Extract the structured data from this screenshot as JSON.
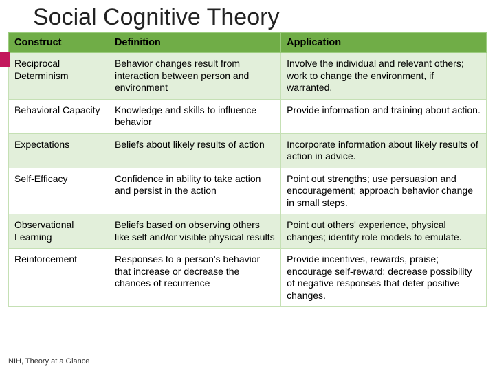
{
  "title": "Social Cognitive Theory",
  "footer": "NIH, Theory at a Glance",
  "accent_color": "#c2185b",
  "table": {
    "type": "table",
    "header_bg": "#70ad47",
    "row_odd_bg": "#e2efda",
    "row_even_bg": "#ffffff",
    "border_color": "#c5e0b4",
    "columns": [
      "Construct",
      "Definition",
      "Application"
    ],
    "col_widths": [
      "21%",
      "36%",
      "43%"
    ],
    "rows": [
      {
        "construct": "Reciprocal Determinism",
        "definition": "Behavior changes result from interaction between person and environment",
        "application": "Involve the individual and relevant others; work to change the environment, if warranted."
      },
      {
        "construct": "Behavioral Capacity",
        "definition": "Knowledge and skills to influence behavior",
        "application": "Provide information and training about action."
      },
      {
        "construct": "Expectations",
        "definition": "Beliefs about likely results of action",
        "application": "Incorporate information about likely results of action in advice."
      },
      {
        "construct": "Self-Efficacy",
        "definition": "Confidence in ability to take action and persist in the action",
        "application": "Point out strengths; use persuasion and encouragement; approach behavior change in small steps."
      },
      {
        "construct": "Observational Learning",
        "definition": "Beliefs based on observing others like self and/or visible physical results",
        "application": "Point out others' experience, physical changes; identify role models to emulate."
      },
      {
        "construct": "Reinforcement",
        "definition": "Responses to a person's behavior that increase or decrease the chances of recurrence",
        "application": "Provide incentives, rewards, praise; encourage self-reward; decrease possibility of negative responses that deter positive changes."
      }
    ]
  }
}
